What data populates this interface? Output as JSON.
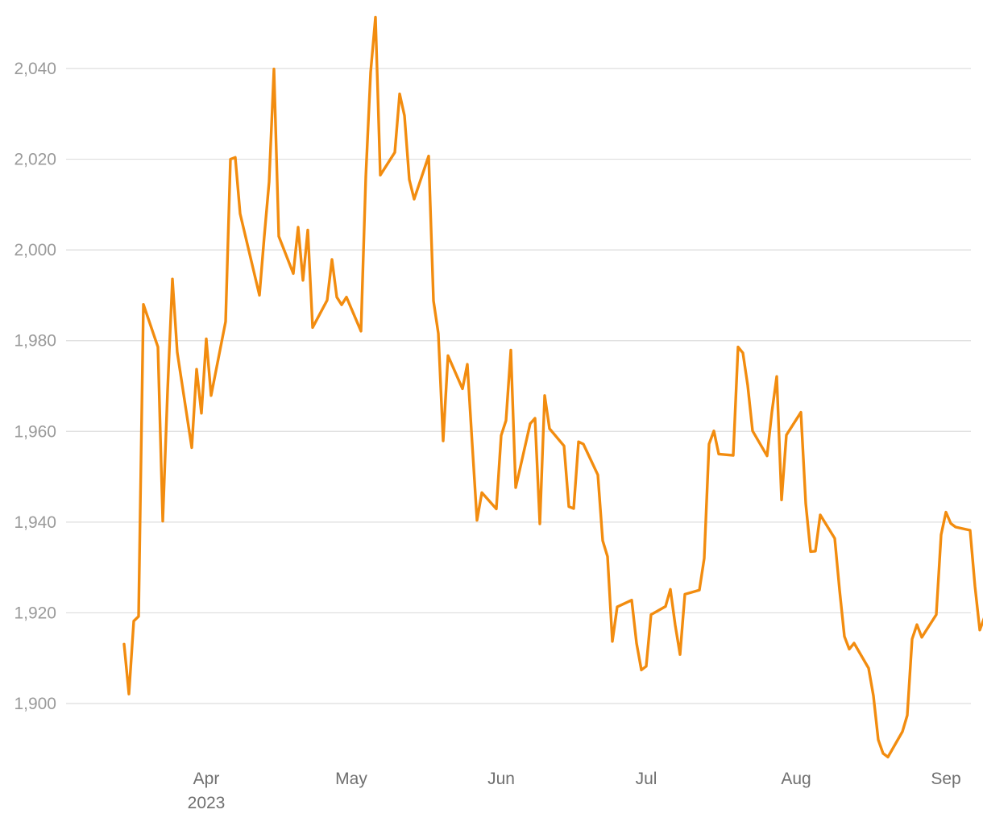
{
  "chart_data": {
    "type": "line",
    "title": "",
    "xlabel": "",
    "ylabel": "",
    "ylim": [
      1887,
      2052
    ],
    "y_ticks": [
      1900,
      1920,
      1940,
      1960,
      1980,
      2000,
      2020,
      2040
    ],
    "y_tick_labels": [
      "1,900",
      "1,920",
      "1,940",
      "1,960",
      "1,980",
      "2,000",
      "2,020",
      "2,040"
    ],
    "x_range": [
      "2023-03-13",
      "2023-09-11"
    ],
    "x_ticks": [
      {
        "date": "2023-04-01",
        "label": "Apr",
        "sublabel": "2023"
      },
      {
        "date": "2023-05-01",
        "label": "May"
      },
      {
        "date": "2023-06-01",
        "label": "Jun"
      },
      {
        "date": "2023-07-01",
        "label": "Jul"
      },
      {
        "date": "2023-08-01",
        "label": "Aug"
      },
      {
        "date": "2023-09-01",
        "label": "Sep"
      }
    ],
    "grid": "horizontal",
    "legend": "none",
    "color": "#f28c0f",
    "series": [
      {
        "points": [
          [
            "2023-03-13",
            1913.1
          ],
          [
            "2023-03-14",
            1902.1
          ],
          [
            "2023-03-15",
            1918.2
          ],
          [
            "2023-03-16",
            1919.2
          ],
          [
            "2023-03-17",
            1988.0
          ],
          [
            "2023-03-20",
            1978.6
          ],
          [
            "2023-03-21",
            1940.2
          ],
          [
            "2023-03-22",
            1969.0
          ],
          [
            "2023-03-23",
            1993.6
          ],
          [
            "2023-03-24",
            1977.4
          ],
          [
            "2023-03-27",
            1956.4
          ],
          [
            "2023-03-28",
            1973.7
          ],
          [
            "2023-03-29",
            1964.0
          ],
          [
            "2023-03-30",
            1980.4
          ],
          [
            "2023-03-31",
            1967.9
          ],
          [
            "2023-04-03",
            1984.2
          ],
          [
            "2023-04-04",
            2020.0
          ],
          [
            "2023-04-05",
            2020.4
          ],
          [
            "2023-04-06",
            2008.0
          ],
          [
            "2023-04-10",
            1990.0
          ],
          [
            "2023-04-11",
            2003.0
          ],
          [
            "2023-04-12",
            2015.0
          ],
          [
            "2023-04-13",
            2039.9
          ],
          [
            "2023-04-14",
            2003.0
          ],
          [
            "2023-04-17",
            1994.8
          ],
          [
            "2023-04-18",
            2005.0
          ],
          [
            "2023-04-19",
            1993.3
          ],
          [
            "2023-04-20",
            2004.4
          ],
          [
            "2023-04-21",
            1982.9
          ],
          [
            "2023-04-24",
            1988.9
          ],
          [
            "2023-04-25",
            1997.9
          ],
          [
            "2023-04-26",
            1989.6
          ],
          [
            "2023-04-27",
            1987.9
          ],
          [
            "2023-04-28",
            1989.6
          ],
          [
            "2023-05-01",
            1982.1
          ],
          [
            "2023-05-02",
            2016.2
          ],
          [
            "2023-05-03",
            2039.2
          ],
          [
            "2023-05-04",
            2051.3
          ],
          [
            "2023-05-05",
            2016.5
          ],
          [
            "2023-05-08",
            2021.5
          ],
          [
            "2023-05-09",
            2034.4
          ],
          [
            "2023-05-10",
            2029.6
          ],
          [
            "2023-05-11",
            2015.5
          ],
          [
            "2023-05-12",
            2011.2
          ],
          [
            "2023-05-15",
            2020.7
          ],
          [
            "2023-05-16",
            1988.8
          ],
          [
            "2023-05-17",
            1981.6
          ],
          [
            "2023-05-18",
            1957.9
          ],
          [
            "2023-05-19",
            1976.7
          ],
          [
            "2023-05-22",
            1969.4
          ],
          [
            "2023-05-23",
            1974.8
          ],
          [
            "2023-05-24",
            1957.4
          ],
          [
            "2023-05-25",
            1940.4
          ],
          [
            "2023-05-26",
            1946.5
          ],
          [
            "2023-05-29",
            1942.9
          ],
          [
            "2023-05-30",
            1959.1
          ],
          [
            "2023-05-31",
            1962.4
          ],
          [
            "2023-06-01",
            1977.9
          ],
          [
            "2023-06-02",
            1947.6
          ],
          [
            "2023-06-05",
            1961.7
          ],
          [
            "2023-06-06",
            1962.9
          ],
          [
            "2023-06-07",
            1939.6
          ],
          [
            "2023-06-08",
            1967.9
          ],
          [
            "2023-06-09",
            1960.6
          ],
          [
            "2023-06-12",
            1956.8
          ],
          [
            "2023-06-13",
            1943.4
          ],
          [
            "2023-06-14",
            1943.0
          ],
          [
            "2023-06-15",
            1957.7
          ],
          [
            "2023-06-16",
            1957.2
          ],
          [
            "2023-06-19",
            1950.4
          ],
          [
            "2023-06-20",
            1935.9
          ],
          [
            "2023-06-21",
            1932.4
          ],
          [
            "2023-06-22",
            1913.7
          ],
          [
            "2023-06-23",
            1921.3
          ],
          [
            "2023-06-26",
            1922.8
          ],
          [
            "2023-06-27",
            1913.3
          ],
          [
            "2023-06-28",
            1907.4
          ],
          [
            "2023-06-29",
            1908.2
          ],
          [
            "2023-06-30",
            1919.6
          ],
          [
            "2023-07-03",
            1921.4
          ],
          [
            "2023-07-04",
            1925.2
          ],
          [
            "2023-07-05",
            1917.3
          ],
          [
            "2023-07-06",
            1910.8
          ],
          [
            "2023-07-07",
            1924.1
          ],
          [
            "2023-07-10",
            1925.0
          ],
          [
            "2023-07-11",
            1932.0
          ],
          [
            "2023-07-12",
            1957.2
          ],
          [
            "2023-07-13",
            1960.1
          ],
          [
            "2023-07-14",
            1955.0
          ],
          [
            "2023-07-17",
            1954.7
          ],
          [
            "2023-07-18",
            1978.6
          ],
          [
            "2023-07-19",
            1977.3
          ],
          [
            "2023-07-20",
            1970.1
          ],
          [
            "2023-07-21",
            1960.1
          ],
          [
            "2023-07-24",
            1954.6
          ],
          [
            "2023-07-25",
            1964.3
          ],
          [
            "2023-07-26",
            1972.1
          ],
          [
            "2023-07-27",
            1944.9
          ],
          [
            "2023-07-28",
            1959.2
          ],
          [
            "2023-07-31",
            1964.2
          ],
          [
            "2023-08-01",
            1944.1
          ],
          [
            "2023-08-02",
            1933.5
          ],
          [
            "2023-08-03",
            1933.6
          ],
          [
            "2023-08-04",
            1941.6
          ],
          [
            "2023-08-07",
            1936.4
          ],
          [
            "2023-08-08",
            1925.0
          ],
          [
            "2023-08-09",
            1914.8
          ],
          [
            "2023-08-10",
            1912.0
          ],
          [
            "2023-08-11",
            1913.3
          ],
          [
            "2023-08-14",
            1907.8
          ],
          [
            "2023-08-15",
            1901.7
          ],
          [
            "2023-08-16",
            1892.0
          ],
          [
            "2023-08-17",
            1889.0
          ],
          [
            "2023-08-18",
            1888.2
          ],
          [
            "2023-08-21",
            1893.8
          ],
          [
            "2023-08-22",
            1897.4
          ],
          [
            "2023-08-23",
            1914.2
          ],
          [
            "2023-08-24",
            1917.4
          ],
          [
            "2023-08-25",
            1914.6
          ],
          [
            "2023-08-28",
            1919.6
          ],
          [
            "2023-08-29",
            1937.2
          ],
          [
            "2023-08-30",
            1942.2
          ],
          [
            "2023-08-31",
            1939.7
          ],
          [
            "2023-09-01",
            1938.9
          ],
          [
            "2023-09-04",
            1938.2
          ],
          [
            "2023-09-05",
            1925.9
          ],
          [
            "2023-09-06",
            1916.2
          ],
          [
            "2023-09-07",
            1919.1
          ],
          [
            "2023-09-08",
            1917.7
          ],
          [
            "2023-09-11",
            1917.4
          ]
        ]
      }
    ]
  }
}
